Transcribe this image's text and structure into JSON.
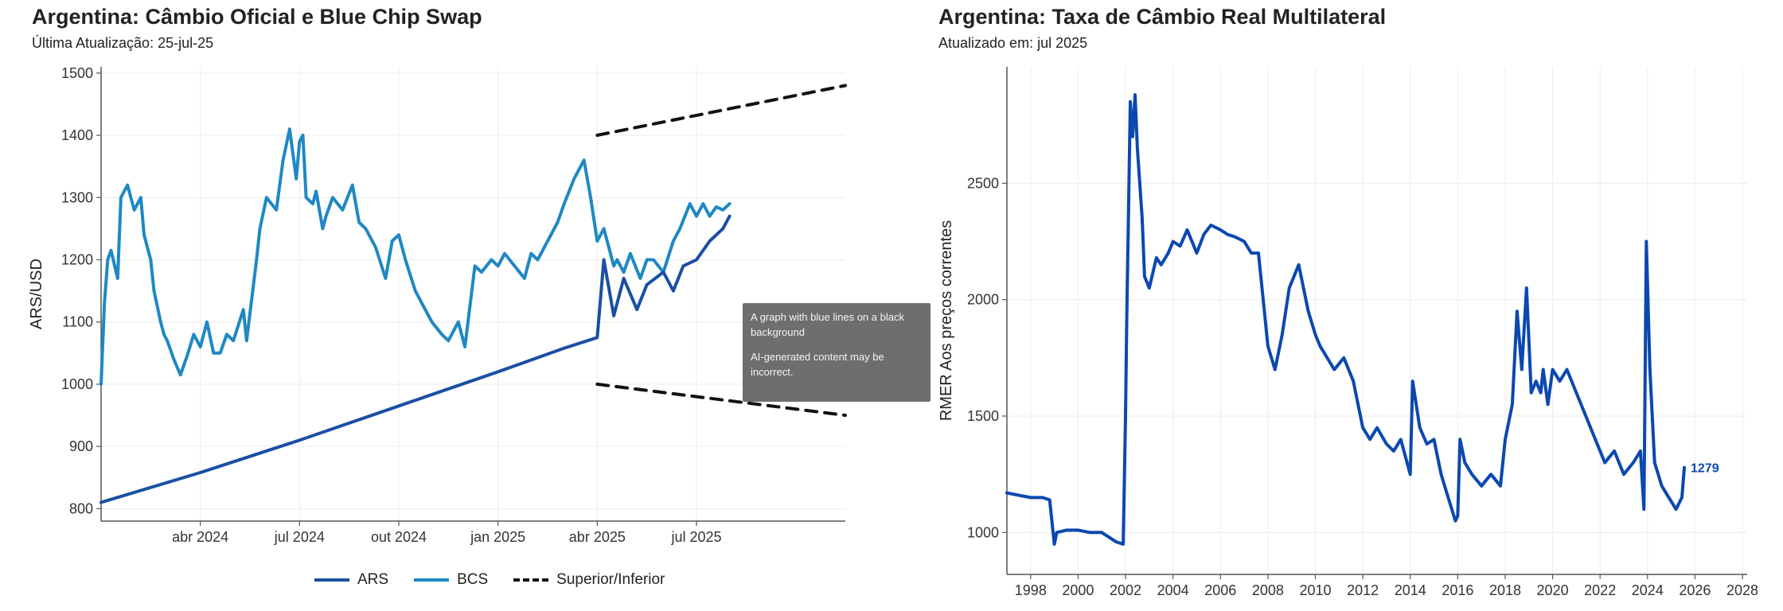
{
  "left": {
    "title": "Argentina: Câmbio Oficial e Blue Chip Swap",
    "subtitle": "Última Atualização: 25-jul-25",
    "legend": [
      "ARS",
      "BCS",
      "Superior/Inferior"
    ]
  },
  "right": {
    "title": "Argentina: Taxa de Câmbio Real Multilateral",
    "subtitle": "Atualizado em: jul 2025",
    "last_label": "1279"
  },
  "tooltip": {
    "line1": "A graph with blue lines on a black background",
    "line2": "AI-generated content may be incorrect."
  },
  "colors": {
    "ars": "#1a4fa3",
    "bcs": "#1f88c3",
    "band": "#111111",
    "rmer": "#0b48b0",
    "grid": "#ececec",
    "axis": "#555555"
  },
  "chart_data": [
    {
      "type": "line",
      "title": "Argentina: Câmbio Oficial e Blue Chip Swap",
      "ylabel": "ARS/USD",
      "xlabel": "",
      "x_unit": "months since 2024-01-01",
      "xlim": [
        0,
        22.5
      ],
      "ylim": [
        780,
        1510
      ],
      "yticks": [
        800,
        900,
        1000,
        1100,
        1200,
        1300,
        1400,
        1500
      ],
      "xticks": [
        {
          "value": 3,
          "label": "abr 2024"
        },
        {
          "value": 6,
          "label": "jul 2024"
        },
        {
          "value": 9,
          "label": "out 2024"
        },
        {
          "value": 12,
          "label": "jan 2025"
        },
        {
          "value": 15,
          "label": "abr 2025"
        },
        {
          "value": 18,
          "label": "jul 2025"
        }
      ],
      "series": [
        {
          "name": "BCS",
          "x": [
            0,
            0.1,
            0.2,
            0.3,
            0.5,
            0.6,
            0.8,
            1.0,
            1.2,
            1.3,
            1.5,
            1.6,
            1.8,
            1.9,
            2.0,
            2.2,
            2.4,
            2.6,
            2.8,
            3.0,
            3.2,
            3.4,
            3.6,
            3.8,
            4.0,
            4.3,
            4.4,
            4.7,
            4.8,
            5.0,
            5.3,
            5.5,
            5.7,
            5.9,
            6.0,
            6.1,
            6.2,
            6.4,
            6.5,
            6.7,
            6.8,
            7.0,
            7.3,
            7.6,
            7.8,
            8.0,
            8.3,
            8.6,
            8.8,
            9.0,
            9.2,
            9.5,
            9.8,
            10.0,
            10.3,
            10.5,
            10.8,
            11.0,
            11.3,
            11.5,
            11.8,
            12.0,
            12.2,
            12.5,
            12.8,
            13.0,
            13.2,
            13.5,
            13.8,
            14.0,
            14.3,
            14.6,
            14.8,
            15.0,
            15.2,
            15.5,
            15.6,
            15.8,
            16.0,
            16.3,
            16.5,
            16.7,
            17.0,
            17.3,
            17.5,
            17.8,
            18.0,
            18.2,
            18.4,
            18.6,
            18.8,
            19.0
          ],
          "values": [
            1000,
            1130,
            1200,
            1215,
            1170,
            1300,
            1320,
            1280,
            1300,
            1240,
            1200,
            1150,
            1100,
            1080,
            1070,
            1040,
            1015,
            1045,
            1080,
            1060,
            1100,
            1050,
            1050,
            1080,
            1070,
            1120,
            1070,
            1200,
            1250,
            1300,
            1280,
            1360,
            1410,
            1330,
            1390,
            1400,
            1300,
            1290,
            1310,
            1250,
            1270,
            1300,
            1280,
            1320,
            1260,
            1250,
            1220,
            1170,
            1230,
            1240,
            1200,
            1150,
            1120,
            1100,
            1080,
            1070,
            1100,
            1060,
            1190,
            1180,
            1200,
            1190,
            1210,
            1190,
            1170,
            1210,
            1200,
            1230,
            1260,
            1290,
            1330,
            1360,
            1300,
            1230,
            1250,
            1190,
            1200,
            1180,
            1210,
            1170,
            1200,
            1200,
            1180,
            1230,
            1250,
            1290,
            1270,
            1290,
            1270,
            1285,
            1280,
            1290
          ]
        },
        {
          "name": "ARS",
          "x": [
            0,
            3,
            6,
            9,
            12,
            14,
            15,
            15.2,
            15.5,
            15.8,
            16.2,
            16.5,
            17.0,
            17.3,
            17.6,
            18.0,
            18.4,
            18.8,
            19.0
          ],
          "values": [
            810,
            858,
            910,
            965,
            1020,
            1058,
            1075,
            1200,
            1110,
            1170,
            1120,
            1160,
            1180,
            1150,
            1190,
            1200,
            1230,
            1250,
            1270
          ]
        },
        {
          "name": "Superior",
          "x": [
            15.0,
            22.5
          ],
          "values": [
            1400,
            1480
          ]
        },
        {
          "name": "Inferior",
          "x": [
            15.0,
            22.5
          ],
          "values": [
            1000,
            950
          ]
        }
      ]
    },
    {
      "type": "line",
      "title": "Argentina: Taxa de Câmbio Real Multilateral",
      "ylabel": "RMER Aos preços correntes",
      "xlabel": "",
      "xlim": [
        1997,
        2028.2
      ],
      "ylim": [
        820,
        3000
      ],
      "yticks": [
        1000,
        1500,
        2000,
        2500
      ],
      "xticks": [
        1998,
        2000,
        2002,
        2004,
        2006,
        2008,
        2010,
        2012,
        2014,
        2016,
        2018,
        2020,
        2022,
        2024,
        2026,
        2028
      ],
      "series": [
        {
          "name": "RMER",
          "x": [
            1997.0,
            1997.5,
            1998.0,
            1998.5,
            1998.8,
            1999.0,
            1999.1,
            1999.5,
            2000.0,
            2000.5,
            2001.0,
            2001.3,
            2001.6,
            2001.9,
            2002.0,
            2002.05,
            2002.2,
            2002.3,
            2002.4,
            2002.5,
            2002.6,
            2002.7,
            2002.8,
            2003.0,
            2003.3,
            2003.5,
            2003.8,
            2004.0,
            2004.3,
            2004.6,
            2005.0,
            2005.3,
            2005.6,
            2006.0,
            2006.3,
            2006.6,
            2007.0,
            2007.3,
            2007.6,
            2008.0,
            2008.3,
            2008.6,
            2008.9,
            2009.3,
            2009.7,
            2010.0,
            2010.2,
            2010.5,
            2010.8,
            2011.2,
            2011.6,
            2012.0,
            2012.3,
            2012.6,
            2013.0,
            2013.3,
            2013.6,
            2014.0,
            2014.1,
            2014.4,
            2014.7,
            2015.0,
            2015.3,
            2015.6,
            2015.9,
            2016.0,
            2016.1,
            2016.3,
            2016.6,
            2017.0,
            2017.4,
            2017.8,
            2018.0,
            2018.3,
            2018.5,
            2018.7,
            2018.9,
            2019.1,
            2019.3,
            2019.5,
            2019.6,
            2019.8,
            2020.0,
            2020.3,
            2020.6,
            2021.0,
            2021.4,
            2021.8,
            2022.2,
            2022.6,
            2023.0,
            2023.4,
            2023.7,
            2023.85,
            2023.95,
            2024.1,
            2024.3,
            2024.6,
            2024.9,
            2025.2,
            2025.45,
            2025.55
          ],
          "values": [
            1170,
            1160,
            1150,
            1150,
            1140,
            950,
            1000,
            1010,
            1010,
            1000,
            1000,
            980,
            960,
            950,
            1500,
            1900,
            2850,
            2700,
            2880,
            2650,
            2500,
            2350,
            2100,
            2050,
            2180,
            2150,
            2200,
            2250,
            2230,
            2300,
            2200,
            2280,
            2320,
            2300,
            2280,
            2270,
            2250,
            2200,
            2200,
            1800,
            1700,
            1850,
            2050,
            2150,
            1950,
            1850,
            1800,
            1750,
            1700,
            1750,
            1650,
            1450,
            1400,
            1450,
            1380,
            1350,
            1400,
            1250,
            1650,
            1450,
            1380,
            1400,
            1250,
            1150,
            1050,
            1070,
            1400,
            1300,
            1250,
            1200,
            1250,
            1200,
            1400,
            1550,
            1950,
            1700,
            2050,
            1600,
            1650,
            1600,
            1700,
            1550,
            1700,
            1650,
            1700,
            1600,
            1500,
            1400,
            1300,
            1350,
            1250,
            1300,
            1350,
            1100,
            2250,
            1700,
            1300,
            1200,
            1150,
            1100,
            1150,
            1279
          ]
        }
      ]
    }
  ]
}
